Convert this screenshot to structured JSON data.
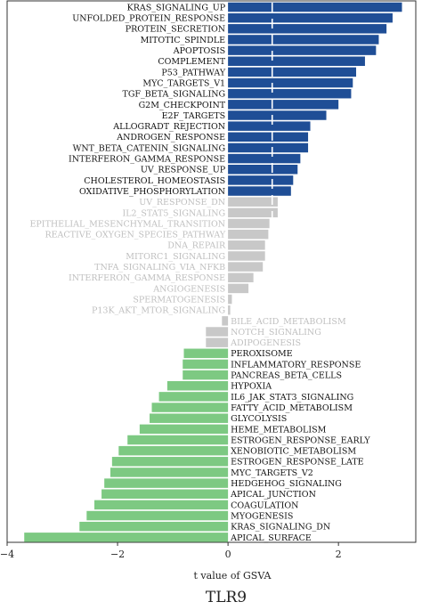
{
  "chart_data": {
    "type": "bar",
    "orientation": "horizontal",
    "xlabel": "t value of GSVA",
    "caption": "TLR9",
    "xlim": [
      -4,
      3.4
    ],
    "xticks": [
      -4,
      -2,
      0,
      2
    ],
    "dashed_reference_x": 0.8,
    "grid": false,
    "legend": "none",
    "colors": {
      "positive": "#1F4E96",
      "neutral": "#C8C8C8",
      "negative": "#7DC982",
      "neutral_text": "#BFBFBF",
      "text": "#111111"
    },
    "bars": [
      {
        "label": "KRAS_SIGNALING_UP",
        "value": 3.15,
        "group": "positive"
      },
      {
        "label": "UNFOLDED_PROTEIN_RESPONSE",
        "value": 2.98,
        "group": "positive"
      },
      {
        "label": "PROTEIN_SECRETION",
        "value": 2.87,
        "group": "positive"
      },
      {
        "label": "MITOTIC_SPINDLE",
        "value": 2.73,
        "group": "positive"
      },
      {
        "label": "APOPTOSIS",
        "value": 2.68,
        "group": "positive"
      },
      {
        "label": "COMPLEMENT",
        "value": 2.48,
        "group": "positive"
      },
      {
        "label": "P53_PATHWAY",
        "value": 2.32,
        "group": "positive"
      },
      {
        "label": "MYC_TARGETS_V1",
        "value": 2.26,
        "group": "positive"
      },
      {
        "label": "TGF_BETA_SIGNALING",
        "value": 2.23,
        "group": "positive"
      },
      {
        "label": "G2M_CHECKPOINT",
        "value": 2.0,
        "group": "positive"
      },
      {
        "label": "E2F_TARGETS",
        "value": 1.78,
        "group": "positive"
      },
      {
        "label": "ALLOGRADT_REJECTION",
        "value": 1.49,
        "group": "positive"
      },
      {
        "label": "ANDROGEN_RESPONSE",
        "value": 1.45,
        "group": "positive"
      },
      {
        "label": "WNT_BETA_CATENIN_SIGNALING",
        "value": 1.45,
        "group": "positive"
      },
      {
        "label": "INTERFERON_GAMMA_RESPONSE",
        "value": 1.31,
        "group": "positive"
      },
      {
        "label": "UV_RESPONSE_UP",
        "value": 1.26,
        "group": "positive"
      },
      {
        "label": "CHOLESTEROL_HOMEOSTASIS",
        "value": 1.18,
        "group": "positive"
      },
      {
        "label": "OXIDATIVE_PHOSPHORYLATION",
        "value": 1.14,
        "group": "positive"
      },
      {
        "label": "UV_RESPONSE_DN",
        "value": 0.9,
        "group": "neutral"
      },
      {
        "label": "IL2_STAT5_SIGNALING",
        "value": 0.9,
        "group": "neutral"
      },
      {
        "label": "EPITHELIAL_MESENCHYMAL_TRANSITION",
        "value": 0.75,
        "group": "neutral"
      },
      {
        "label": "REACTIVE_OXYGEN_SPECIES_PATHWAY",
        "value": 0.73,
        "group": "neutral"
      },
      {
        "label": "DNA_REPAIR",
        "value": 0.67,
        "group": "neutral"
      },
      {
        "label": "MITORC1_SIGNALING",
        "value": 0.67,
        "group": "neutral"
      },
      {
        "label": "TNFA_SIGNALING_VIA_NFKB",
        "value": 0.63,
        "group": "neutral"
      },
      {
        "label": "INTERFERON_GAMMA_RESPONSE",
        "value": 0.46,
        "group": "neutral"
      },
      {
        "label": "ANGIOGENESIS",
        "value": 0.37,
        "group": "neutral"
      },
      {
        "label": "SPERMATOGENESIS",
        "value": 0.07,
        "group": "neutral"
      },
      {
        "label": "P13K_AKT_MTOR_SIGNALING",
        "value": 0.04,
        "group": "neutral"
      },
      {
        "label": "BILE_ACID_METABOLISM",
        "value": -0.11,
        "group": "neutral"
      },
      {
        "label": "NOTCH_SIGNALING",
        "value": -0.4,
        "group": "neutral"
      },
      {
        "label": "ADIPOGENESIS",
        "value": -0.4,
        "group": "neutral"
      },
      {
        "label": "PEROXISOME",
        "value": -0.8,
        "group": "negative"
      },
      {
        "label": "INFLAMMATORY_RESPONSE",
        "value": -0.82,
        "group": "negative"
      },
      {
        "label": "PANCREAS_BETA_CELLS",
        "value": -0.82,
        "group": "negative"
      },
      {
        "label": "HYPOXIA",
        "value": -1.1,
        "group": "negative"
      },
      {
        "label": "IL6_JAK_STAT3_SIGNALING",
        "value": -1.25,
        "group": "negative"
      },
      {
        "label": "FATTY_ACID_METABOLISM",
        "value": -1.38,
        "group": "negative"
      },
      {
        "label": "GLYCOLYSIS",
        "value": -1.42,
        "group": "negative"
      },
      {
        "label": "HEME_METABOLISM",
        "value": -1.6,
        "group": "negative"
      },
      {
        "label": "ESTROGEN_RESPONSE_EARLY",
        "value": -1.82,
        "group": "negative"
      },
      {
        "label": "XENOBIOTIC_METABOLISM",
        "value": -1.98,
        "group": "negative"
      },
      {
        "label": "ESTROGEN_RESPONSE_LATE",
        "value": -2.1,
        "group": "negative"
      },
      {
        "label": "MYC_TARGETS_V2",
        "value": -2.13,
        "group": "negative"
      },
      {
        "label": "HEDGEHOG_SIGNALING",
        "value": -2.24,
        "group": "negative"
      },
      {
        "label": "APICAL_JUNCTION",
        "value": -2.29,
        "group": "negative"
      },
      {
        "label": "COAGULATION",
        "value": -2.42,
        "group": "negative"
      },
      {
        "label": "MYOGENESIS",
        "value": -2.56,
        "group": "negative"
      },
      {
        "label": "KRAS_SIGNALING_DN",
        "value": -2.69,
        "group": "negative"
      },
      {
        "label": "APICAL_SURFACE",
        "value": -3.69,
        "group": "negative"
      }
    ]
  }
}
